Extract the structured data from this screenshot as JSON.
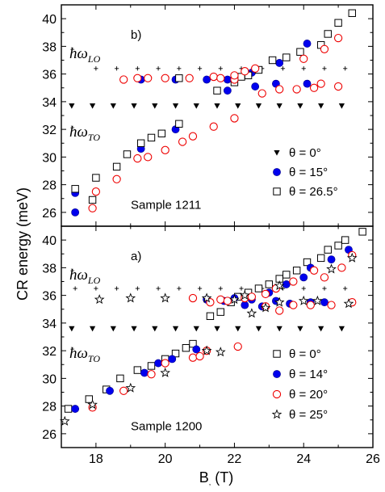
{
  "chart_data": {
    "type": "scatter",
    "xlabel": "B",
    "xlabel_unit": "(T)",
    "ylabel": "CR energy (meV)",
    "xlim": [
      17,
      26
    ],
    "x_ticks": [
      18,
      20,
      22,
      24,
      26
    ],
    "legend_position": "bottom-right",
    "grid": false,
    "panels": [
      {
        "id": "top",
        "label": "b)",
        "sample_label": "Sample 1211",
        "ylim": [
          25,
          41
        ],
        "y_ticks": [
          26,
          28,
          30,
          32,
          34,
          36,
          38,
          40
        ],
        "lo_label": "ħω",
        "lo_sub": "LO",
        "to_label": "ħω",
        "to_sub": "TO",
        "lo_line": {
          "y": 36.4,
          "x": [
            18.0,
            18.6,
            19.2,
            19.8,
            20.4,
            21.0,
            21.6,
            22.2,
            22.8,
            23.4,
            24.0,
            24.6,
            25.2
          ]
        },
        "to_line": {
          "y": 33.7,
          "x": [
            17.3,
            17.9,
            18.5,
            19.1,
            19.7,
            20.3,
            20.9,
            21.5,
            22.1,
            22.7,
            23.3,
            23.9,
            24.5,
            25.1
          ]
        },
        "series": [
          {
            "name": "θ = 0°",
            "marker": "triangle",
            "points": []
          },
          {
            "name": "θ = 15°",
            "marker": "filled-circle",
            "points": [
              [
                17.4,
                26.0
              ],
              [
                17.4,
                27.4
              ],
              [
                19.3,
                30.6
              ],
              [
                19.3,
                35.6
              ],
              [
                20.3,
                32.0
              ],
              [
                20.3,
                35.6
              ],
              [
                21.2,
                35.6
              ],
              [
                21.8,
                35.6
              ],
              [
                21.8,
                34.8
              ],
              [
                22.5,
                36.1
              ],
              [
                22.6,
                35.1
              ],
              [
                23.2,
                35.3
              ],
              [
                23.3,
                36.8
              ],
              [
                24.1,
                35.3
              ],
              [
                24.1,
                38.2
              ]
            ]
          },
          {
            "name": "θ = 26.5°",
            "marker": "open-square",
            "points": [
              [
                17.4,
                27.7
              ],
              [
                17.9,
                26.9
              ],
              [
                18.0,
                28.5
              ],
              [
                18.6,
                29.3
              ],
              [
                18.9,
                30.2
              ],
              [
                19.3,
                31.0
              ],
              [
                19.6,
                31.4
              ],
              [
                19.9,
                31.7
              ],
              [
                20.4,
                32.4
              ],
              [
                20.4,
                35.7
              ],
              [
                21.5,
                34.8
              ],
              [
                22.0,
                35.4
              ],
              [
                22.2,
                35.8
              ],
              [
                22.4,
                35.9
              ],
              [
                22.7,
                36.3
              ],
              [
                23.1,
                37.0
              ],
              [
                23.5,
                37.2
              ],
              [
                23.9,
                37.6
              ],
              [
                24.5,
                38.1
              ],
              [
                24.7,
                38.9
              ],
              [
                25.0,
                39.7
              ],
              [
                25.4,
                40.4
              ]
            ]
          },
          {
            "name": "θ = 15°",
            "marker": "open-circle",
            "legend": false,
            "points": [
              [
                17.9,
                26.3
              ],
              [
                18.0,
                27.5
              ],
              [
                18.6,
                28.4
              ],
              [
                18.8,
                35.6
              ],
              [
                19.2,
                29.9
              ],
              [
                19.2,
                35.7
              ],
              [
                19.5,
                30.0
              ],
              [
                19.5,
                35.7
              ],
              [
                20.0,
                30.5
              ],
              [
                20.0,
                35.7
              ],
              [
                20.5,
                31.1
              ],
              [
                20.7,
                35.7
              ],
              [
                20.8,
                31.5
              ],
              [
                21.4,
                32.2
              ],
              [
                21.4,
                35.8
              ],
              [
                21.6,
                35.7
              ],
              [
                22.0,
                32.8
              ],
              [
                22.0,
                35.6
              ],
              [
                22.0,
                35.9
              ],
              [
                22.3,
                36.2
              ],
              [
                22.6,
                36.4
              ],
              [
                22.8,
                34.6
              ],
              [
                23.3,
                34.9
              ],
              [
                23.8,
                34.9
              ],
              [
                24.0,
                37.1
              ],
              [
                24.3,
                35.0
              ],
              [
                24.5,
                35.3
              ],
              [
                24.6,
                37.8
              ],
              [
                25.0,
                35.1
              ],
              [
                25.0,
                38.6
              ]
            ]
          }
        ]
      },
      {
        "id": "bottom",
        "label": "a)",
        "sample_label": "Sample 1200",
        "ylim": [
          25,
          41
        ],
        "y_ticks": [
          26,
          28,
          30,
          32,
          34,
          36,
          38,
          40
        ],
        "lo_label": "ħω",
        "lo_sub": "LO",
        "to_label": "ħω",
        "to_sub": "TO",
        "lo_line": {
          "y": 36.5,
          "x": [
            17.4,
            18.0,
            18.6,
            19.2,
            19.8,
            20.4,
            21.0,
            21.6,
            22.2,
            22.8,
            23.4,
            24.0,
            24.6,
            25.2
          ]
        },
        "to_line": {
          "y": 33.6,
          "x": [
            17.3,
            17.9,
            18.5,
            19.1,
            19.7,
            20.3,
            20.9,
            21.5,
            22.1,
            22.7,
            23.3,
            23.9,
            24.5,
            25.1
          ]
        },
        "series": [
          {
            "name": "θ = 0°",
            "marker": "open-square",
            "points": [
              [
                17.2,
                27.8
              ],
              [
                17.8,
                28.5
              ],
              [
                18.3,
                29.2
              ],
              [
                18.7,
                30.0
              ],
              [
                19.2,
                30.6
              ],
              [
                19.6,
                30.9
              ],
              [
                20.0,
                31.4
              ],
              [
                20.3,
                31.8
              ],
              [
                20.6,
                32.2
              ],
              [
                20.8,
                32.5
              ],
              [
                21.3,
                34.5
              ],
              [
                21.6,
                34.8
              ],
              [
                21.9,
                35.5
              ],
              [
                22.1,
                35.9
              ],
              [
                22.4,
                36.2
              ],
              [
                22.7,
                36.5
              ],
              [
                23.0,
                36.8
              ],
              [
                23.3,
                37.2
              ],
              [
                23.5,
                37.5
              ],
              [
                23.8,
                37.8
              ],
              [
                24.1,
                38.4
              ],
              [
                24.5,
                38.7
              ],
              [
                24.7,
                39.3
              ],
              [
                25.0,
                39.6
              ],
              [
                25.2,
                40.0
              ],
              [
                25.7,
                40.6
              ]
            ]
          },
          {
            "name": "θ = 14°",
            "marker": "filled-circle",
            "points": [
              [
                17.4,
                27.8
              ],
              [
                18.4,
                29.1
              ],
              [
                19.4,
                30.4
              ],
              [
                19.8,
                31.1
              ],
              [
                20.2,
                31.4
              ],
              [
                20.9,
                32.1
              ],
              [
                21.2,
                35.7
              ],
              [
                21.7,
                35.6
              ],
              [
                22.0,
                35.8
              ],
              [
                22.3,
                35.3
              ],
              [
                22.5,
                35.7
              ],
              [
                22.8,
                35.2
              ],
              [
                23.0,
                36.2
              ],
              [
                23.2,
                35.6
              ],
              [
                23.5,
                36.8
              ],
              [
                23.6,
                35.4
              ],
              [
                24.0,
                37.3
              ],
              [
                24.2,
                35.5
              ],
              [
                24.2,
                38.0
              ],
              [
                24.6,
                35.5
              ],
              [
                24.8,
                38.6
              ],
              [
                25.3,
                39.3
              ]
            ]
          },
          {
            "name": "θ = 20°",
            "marker": "open-circle",
            "points": [
              [
                17.9,
                27.9
              ],
              [
                18.8,
                29.1
              ],
              [
                19.6,
                30.3
              ],
              [
                20.0,
                31.1
              ],
              [
                20.8,
                31.5
              ],
              [
                20.8,
                35.8
              ],
              [
                21.0,
                31.6
              ],
              [
                21.2,
                32.0
              ],
              [
                21.3,
                35.5
              ],
              [
                21.6,
                35.7
              ],
              [
                21.8,
                35.6
              ],
              [
                22.1,
                32.3
              ],
              [
                22.3,
                35.8
              ],
              [
                22.5,
                35.9
              ],
              [
                22.9,
                35.2
              ],
              [
                22.9,
                36.1
              ],
              [
                23.2,
                36.5
              ],
              [
                23.3,
                34.9
              ],
              [
                23.7,
                35.3
              ],
              [
                23.7,
                37.0
              ],
              [
                24.2,
                35.3
              ],
              [
                24.3,
                37.8
              ],
              [
                24.6,
                37.3
              ],
              [
                24.8,
                35.3
              ],
              [
                25.1,
                38.0
              ],
              [
                25.4,
                35.5
              ],
              [
                25.4,
                38.9
              ]
            ]
          },
          {
            "name": "θ = 25°",
            "marker": "star",
            "points": [
              [
                17.1,
                26.9
              ],
              [
                17.9,
                28.1
              ],
              [
                18.1,
                35.7
              ],
              [
                19.0,
                29.3
              ],
              [
                19.0,
                35.8
              ],
              [
                20.0,
                30.4
              ],
              [
                20.0,
                35.8
              ],
              [
                21.2,
                32.0
              ],
              [
                21.2,
                35.8
              ],
              [
                21.6,
                31.9
              ],
              [
                22.0,
                35.7
              ],
              [
                22.3,
                36.0
              ],
              [
                22.5,
                34.7
              ],
              [
                22.9,
                35.1
              ],
              [
                23.3,
                36.7
              ],
              [
                23.3,
                35.5
              ],
              [
                24.0,
                35.6
              ],
              [
                24.4,
                35.6
              ],
              [
                24.8,
                37.9
              ],
              [
                25.3,
                35.4
              ],
              [
                25.4,
                38.7
              ]
            ]
          }
        ]
      }
    ]
  }
}
